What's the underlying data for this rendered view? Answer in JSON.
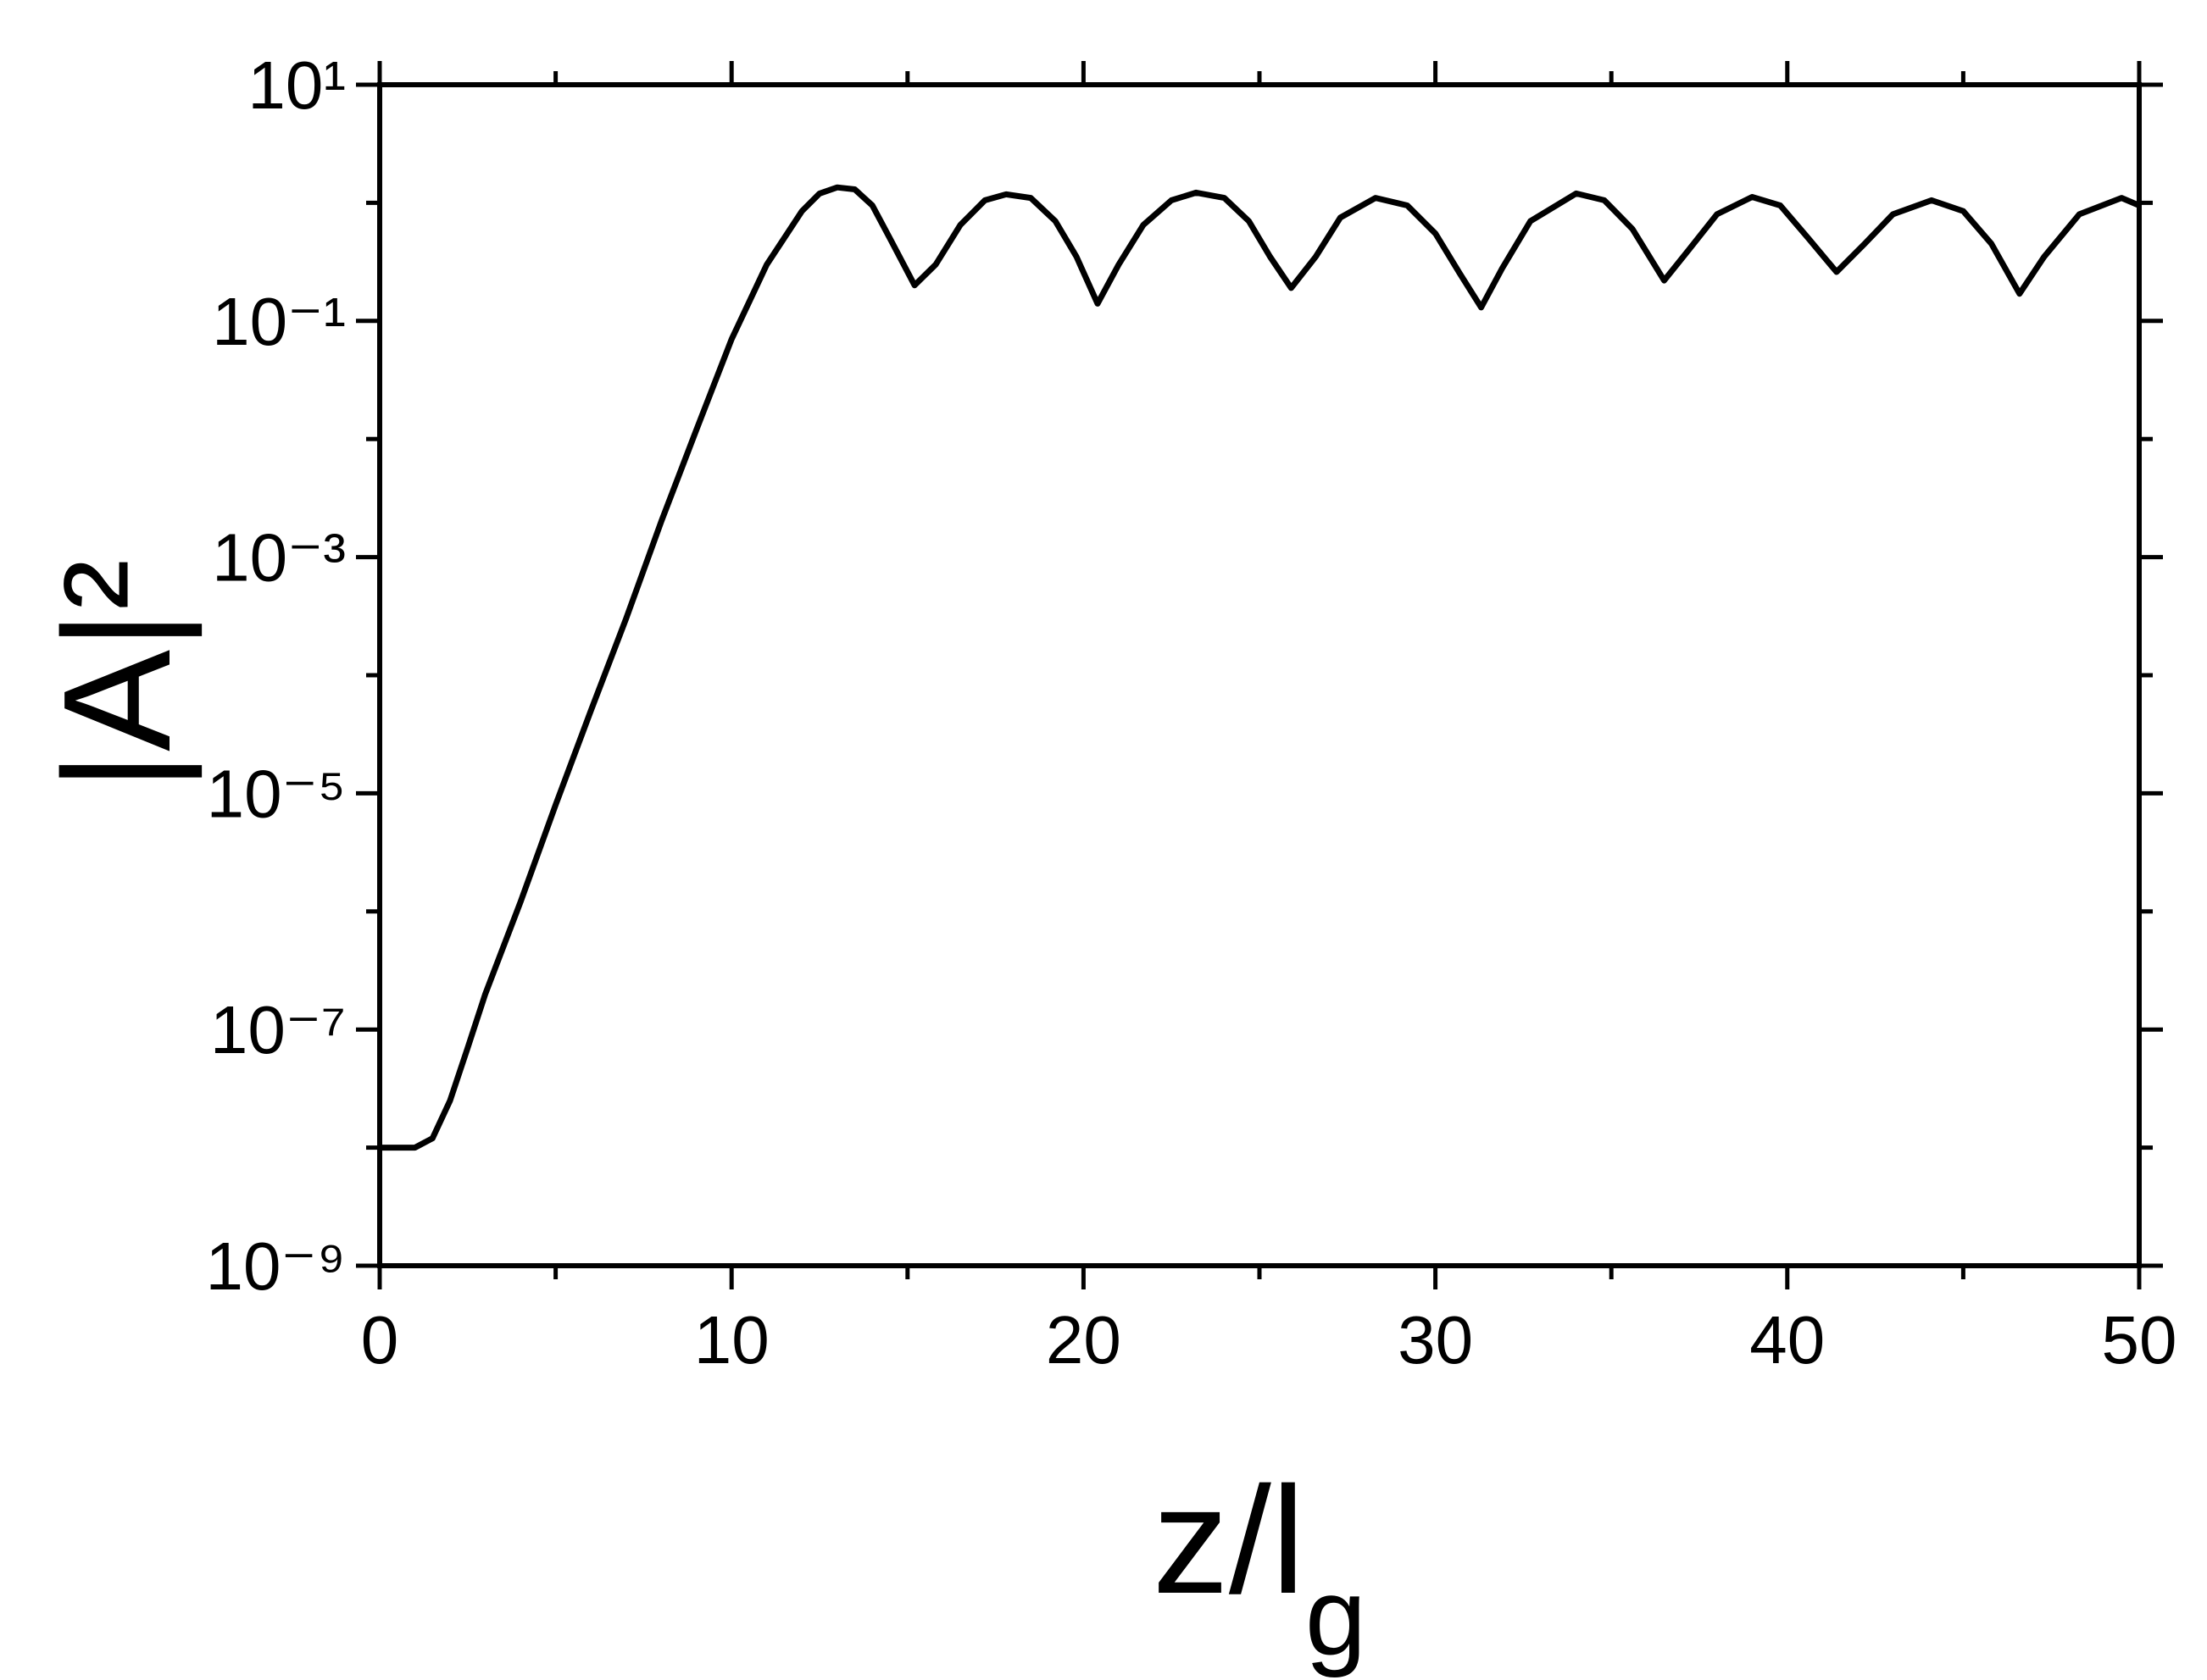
{
  "chart_data": {
    "type": "line",
    "xlabel": {
      "text": "z/l",
      "sub": "g"
    },
    "ylabel": "|A|²",
    "xlim": [
      0,
      50
    ],
    "xticks": [
      0,
      10,
      20,
      30,
      40,
      50
    ],
    "xminor_ticks": [
      5,
      15,
      25,
      35,
      45
    ],
    "ylim": [
      1e-09,
      10
    ],
    "yscale": "log",
    "yticks": [
      {
        "value": 1e-09,
        "label": "10⁻⁹"
      },
      {
        "value": 1e-07,
        "label": "10⁻⁷"
      },
      {
        "value": 1e-05,
        "label": "10⁻⁵"
      },
      {
        "value": 0.001,
        "label": "10⁻³"
      },
      {
        "value": 0.1,
        "label": "10⁻¹"
      },
      {
        "value": 10,
        "label": "10¹"
      }
    ],
    "yminor_ticks": [
      1e-08,
      1e-06,
      0.0001,
      0.01,
      1
    ],
    "x": [
      0,
      1,
      1.5,
      2,
      2.5,
      3,
      4,
      5,
      6,
      7,
      8,
      9,
      10,
      11,
      12,
      12.5,
      13,
      13.5,
      14,
      14.5,
      15.2,
      15.8,
      16.5,
      17.2,
      17.8,
      18.5,
      19.2,
      19.8,
      20.4,
      21,
      21.7,
      22.5,
      23.2,
      24,
      24.7,
      25.3,
      25.9,
      26.6,
      27.3,
      28.3,
      29.2,
      30,
      30.7,
      31.3,
      31.9,
      32.7,
      34,
      34.8,
      35.6,
      36.5,
      37.2,
      38,
      39,
      39.8,
      40.6,
      41.4,
      42.2,
      43,
      44.1,
      45,
      45.8,
      46.6,
      47.3,
      48.3,
      49.5,
      50
    ],
    "series": [
      {
        "color": "#000000",
        "values": [
          1e-08,
          1e-08,
          1.2e-08,
          2.5e-08,
          7e-08,
          2e-07,
          1.2e-06,
          8e-06,
          5e-05,
          0.0003,
          0.002,
          0.012,
          0.07,
          0.3,
          0.85,
          1.2,
          1.35,
          1.3,
          0.95,
          0.5,
          0.2,
          0.3,
          0.65,
          1.05,
          1.18,
          1.1,
          0.7,
          0.35,
          0.14,
          0.3,
          0.65,
          1.05,
          1.22,
          1.1,
          0.7,
          0.35,
          0.19,
          0.35,
          0.75,
          1.1,
          0.95,
          0.55,
          0.25,
          0.13,
          0.28,
          0.7,
          1.2,
          1.05,
          0.6,
          0.22,
          0.4,
          0.8,
          1.12,
          0.95,
          0.5,
          0.26,
          0.45,
          0.8,
          1.05,
          0.85,
          0.45,
          0.17,
          0.35,
          0.8,
          1.1,
          0.95
        ]
      }
    ]
  }
}
